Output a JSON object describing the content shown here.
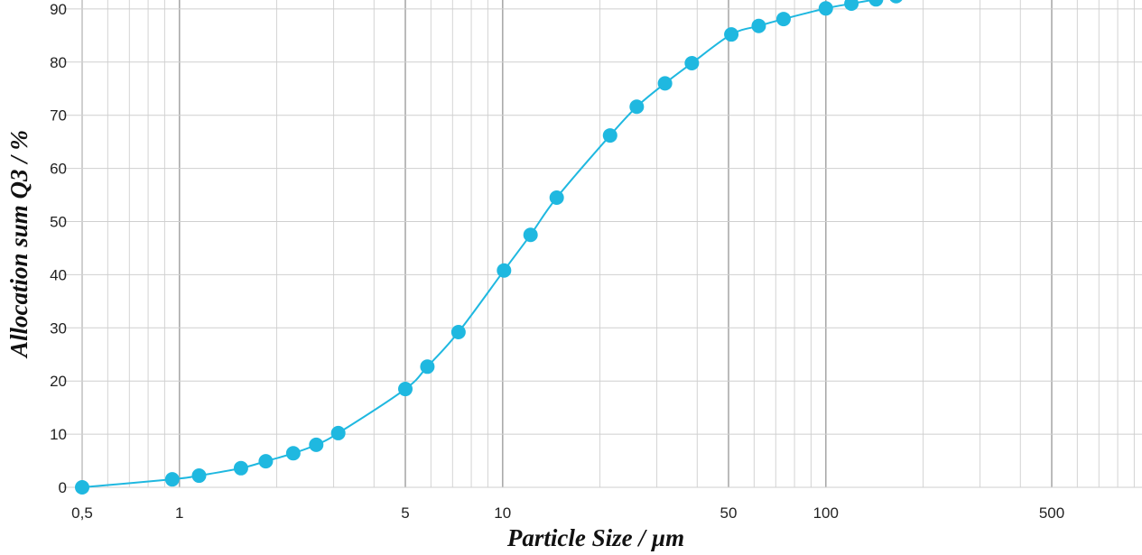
{
  "chart_data": {
    "type": "line",
    "title": "",
    "xlabel": "Particle Size / µm",
    "ylabel": "Allocation sum Q3 / %",
    "x_scale": "log",
    "xlim": [
      0.5,
      1000
    ],
    "ylim": [
      0,
      90
    ],
    "grid": true,
    "x_ticks": [
      {
        "value": 0.5,
        "label": "0,5"
      },
      {
        "value": 1,
        "label": "1"
      },
      {
        "value": 5,
        "label": "5"
      },
      {
        "value": 10,
        "label": "10"
      },
      {
        "value": 50,
        "label": "50"
      },
      {
        "value": 100,
        "label": "100"
      },
      {
        "value": 500,
        "label": "500"
      }
    ],
    "y_ticks": [
      {
        "value": 0,
        "label": "0"
      },
      {
        "value": 10,
        "label": "10"
      },
      {
        "value": 20,
        "label": "20"
      },
      {
        "value": 30,
        "label": "30"
      },
      {
        "value": 40,
        "label": "40"
      },
      {
        "value": 50,
        "label": "50"
      },
      {
        "value": 60,
        "label": "60"
      },
      {
        "value": 70,
        "label": "70"
      },
      {
        "value": 80,
        "label": "80"
      },
      {
        "value": 90,
        "label": "90"
      }
    ],
    "series": [
      {
        "color": "#1fb8e0",
        "x": [
          0.5,
          0.95,
          1.15,
          1.55,
          1.85,
          2.25,
          2.65,
          3.1,
          5.0,
          5.85,
          7.3,
          10.1,
          12.2,
          14.7,
          21.5,
          26.0,
          31.8,
          38.5,
          51.0,
          62.0,
          74.0,
          100.0,
          120.0,
          143.0,
          165.0
        ],
        "y": [
          0,
          1.5,
          2.2,
          3.6,
          4.9,
          6.4,
          8.0,
          10.2,
          18.5,
          22.7,
          29.2,
          40.8,
          47.5,
          54.5,
          66.2,
          71.6,
          76.0,
          79.8,
          85.2,
          86.8,
          88.1,
          90.1,
          91.0,
          91.8,
          92.4
        ]
      }
    ]
  }
}
